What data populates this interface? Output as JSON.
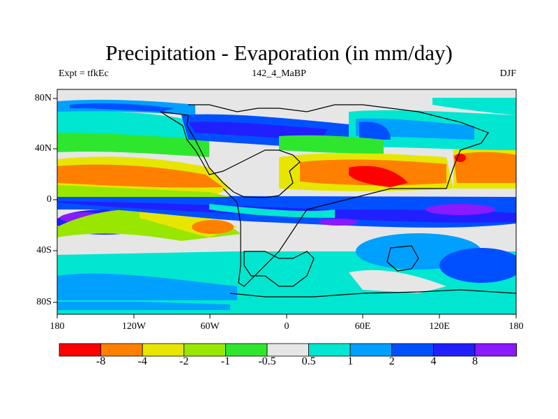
{
  "title": "Precipitation - Evaporation (in mm/day)",
  "subtitle_left": "Expt = tfkEc",
  "subtitle_center": "142_4_MaBP",
  "subtitle_right": "DJF",
  "lat_labels": [
    "80N",
    "40N",
    "0",
    "40S",
    "80S"
  ],
  "lon_labels": [
    "180",
    "120W",
    "60W",
    "0",
    "60E",
    "120E",
    "180"
  ],
  "colorbar": {
    "colors": [
      "#ff0000",
      "#ff8000",
      "#e6e600",
      "#99e600",
      "#2fe62f",
      "#e6e6e6",
      "#00e6d0",
      "#00a0ff",
      "#0050ff",
      "#2020ff",
      "#8a1aff"
    ],
    "labels": [
      "-8",
      "-4",
      "-2",
      "-1",
      "-0.5",
      "0.5",
      "1",
      "2",
      "4",
      "8"
    ]
  }
}
